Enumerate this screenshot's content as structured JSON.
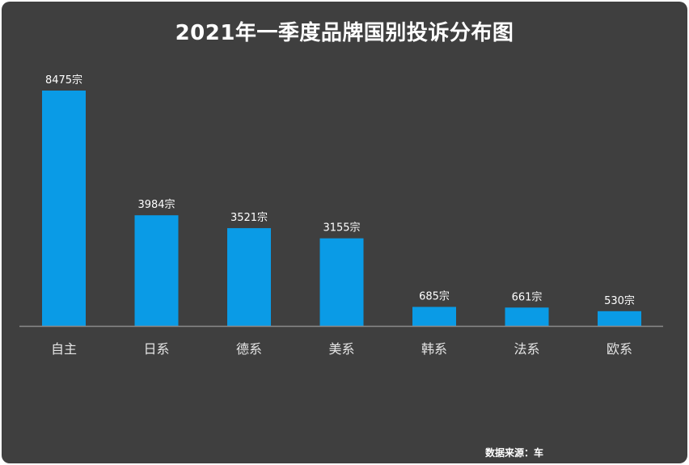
{
  "chart_data": {
    "type": "bar",
    "title": "2021年一季度品牌国别投诉分布图",
    "categories": [
      "自主",
      "日系",
      "德系",
      "美系",
      "韩系",
      "法系",
      "欧系"
    ],
    "values": [
      8475,
      3984,
      3521,
      3155,
      685,
      661,
      530
    ],
    "value_labels": [
      "8475宗",
      "3984宗",
      "3521宗",
      "3155宗",
      "685宗",
      "661宗",
      "530宗"
    ],
    "unit": "宗",
    "xlabel": "",
    "ylabel": "",
    "ylim": [
      0,
      8475
    ],
    "grid": false,
    "legend": "none"
  },
  "colors": {
    "background": "#3f3f3f",
    "bar": "#0a9be6",
    "axis": "#8a8a8a",
    "text": "#ffffff",
    "tick_text": "#e6e6e6"
  },
  "footer": {
    "source": "数据来源：车"
  }
}
